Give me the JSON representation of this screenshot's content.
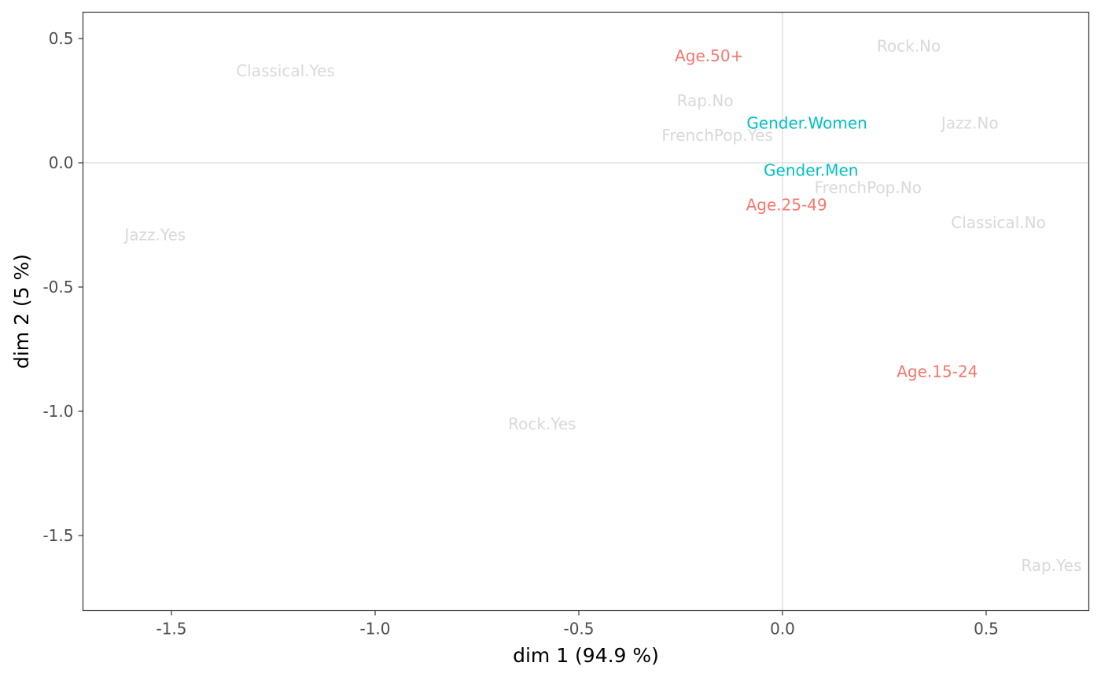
{
  "chart_data": {
    "type": "scatter",
    "xlabel": "dim 1 (94.9 %)",
    "ylabel": "dim 2 (5 %)",
    "xlim": [
      -1.72,
      0.75
    ],
    "ylim": [
      -1.8,
      0.61
    ],
    "x_ticks": [
      -1.5,
      -1.0,
      -0.5,
      0.0,
      0.5
    ],
    "x_tick_labels": [
      "-1.5",
      "-1.0",
      "-0.5",
      "0.0",
      "0.5"
    ],
    "y_ticks": [
      0.5,
      0.0,
      -0.5,
      -1.0,
      -1.5
    ],
    "y_tick_labels": [
      "0.5",
      "0.0",
      "-0.5",
      "-1.0",
      "-1.5"
    ],
    "grid": false,
    "reference_lines": {
      "x": 0,
      "y": 0
    },
    "colors": {
      "Age": "#f8766d",
      "Gender": "#00bfc4",
      "supplementary": "#d9d9d9"
    },
    "points": [
      {
        "label": "Classical.Yes",
        "x": -1.22,
        "y": 0.37,
        "group": "supplementary"
      },
      {
        "label": "Rock.No",
        "x": 0.31,
        "y": 0.47,
        "group": "supplementary"
      },
      {
        "label": "Age.50+",
        "x": -0.18,
        "y": 0.43,
        "group": "Age"
      },
      {
        "label": "Rap.No",
        "x": -0.19,
        "y": 0.25,
        "group": "supplementary"
      },
      {
        "label": "Gender.Women",
        "x": 0.06,
        "y": 0.16,
        "group": "Gender"
      },
      {
        "label": "Jazz.No",
        "x": 0.46,
        "y": 0.16,
        "group": "supplementary"
      },
      {
        "label": "FrenchPop.Yes",
        "x": -0.16,
        "y": 0.11,
        "group": "supplementary"
      },
      {
        "label": "Gender.Men",
        "x": 0.07,
        "y": -0.03,
        "group": "Gender"
      },
      {
        "label": "FrenchPop.No",
        "x": 0.21,
        "y": -0.1,
        "group": "supplementary"
      },
      {
        "label": "Age.25-49",
        "x": 0.01,
        "y": -0.17,
        "group": "Age"
      },
      {
        "label": "Classical.No",
        "x": 0.53,
        "y": -0.24,
        "group": "supplementary"
      },
      {
        "label": "Jazz.Yes",
        "x": -1.54,
        "y": -0.29,
        "group": "supplementary"
      },
      {
        "label": "Age.15-24",
        "x": 0.38,
        "y": -0.84,
        "group": "Age"
      },
      {
        "label": "Rock.Yes",
        "x": -0.59,
        "y": -1.05,
        "group": "supplementary"
      },
      {
        "label": "Rap.Yes",
        "x": 0.66,
        "y": -1.62,
        "group": "supplementary"
      }
    ]
  }
}
